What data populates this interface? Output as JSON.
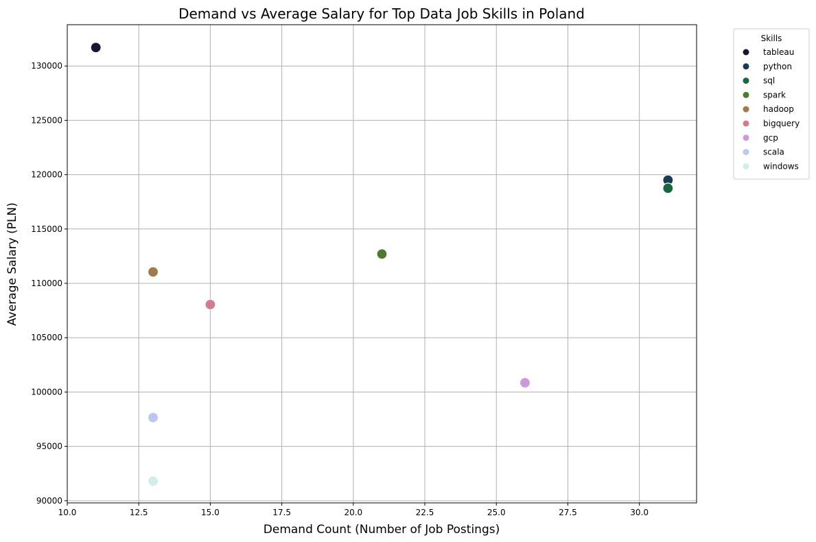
{
  "chart_data": {
    "type": "scatter",
    "title": "Demand vs Average Salary for Top Data Job Skills in Poland",
    "xlabel": "Demand Count (Number of Job Postings)",
    "ylabel": "Average Salary (PLN)",
    "xlim": [
      10.0,
      32.0
    ],
    "ylim": [
      89800,
      133800
    ],
    "xticks": [
      10.0,
      12.5,
      15.0,
      17.5,
      20.0,
      22.5,
      25.0,
      27.5,
      30.0
    ],
    "xtick_labels": [
      "10.0",
      "12.5",
      "15.0",
      "17.5",
      "20.0",
      "22.5",
      "25.0",
      "27.5",
      "30.0"
    ],
    "yticks": [
      90000,
      95000,
      100000,
      105000,
      110000,
      115000,
      120000,
      125000,
      130000
    ],
    "ytick_labels": [
      "90000",
      "95000",
      "100000",
      "105000",
      "110000",
      "115000",
      "120000",
      "125000",
      "130000"
    ],
    "grid": true,
    "legend": {
      "title": "Skills",
      "placement": "outside-top-right"
    },
    "series": [
      {
        "name": "tableau",
        "color": "#1a1530",
        "x": 11,
        "y": 131700
      },
      {
        "name": "python",
        "color": "#1c3a52",
        "x": 31,
        "y": 119500
      },
      {
        "name": "sql",
        "color": "#186741",
        "x": 31,
        "y": 118750
      },
      {
        "name": "spark",
        "color": "#527a2e",
        "x": 21,
        "y": 112700
      },
      {
        "name": "hadoop",
        "color": "#a07a4b",
        "x": 13,
        "y": 111050
      },
      {
        "name": "bigquery",
        "color": "#d07d8e",
        "x": 15,
        "y": 108050
      },
      {
        "name": "gcp",
        "color": "#cd9ad9",
        "x": 26,
        "y": 100850
      },
      {
        "name": "scala",
        "color": "#bcc8f0",
        "x": 13,
        "y": 97650
      },
      {
        "name": "windows",
        "color": "#d1eeea",
        "x": 13,
        "y": 91800
      }
    ]
  }
}
